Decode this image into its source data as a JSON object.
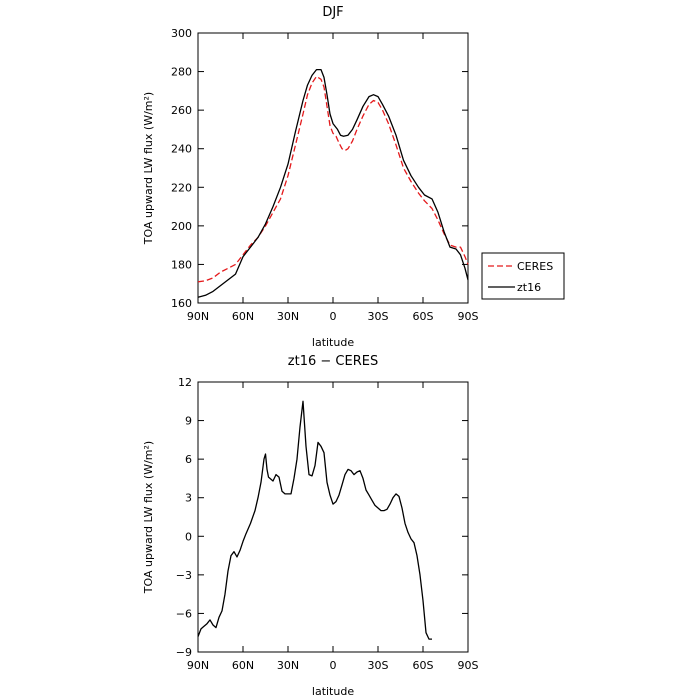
{
  "chart_data": [
    {
      "type": "line",
      "title": "DJF",
      "xlabel": "latitude",
      "ylabel": "TOA upward LW flux (W/m²)",
      "xlim": [
        90,
        -90
      ],
      "ylim": [
        160,
        300
      ],
      "xticks": [
        90,
        60,
        30,
        0,
        -30,
        -60,
        -90
      ],
      "xtick_labels": [
        "90N",
        "60N",
        "30N",
        "0",
        "30S",
        "60S",
        "90S"
      ],
      "yticks": [
        160,
        180,
        200,
        220,
        240,
        260,
        280,
        300
      ],
      "ytick_labels": [
        "160",
        "180",
        "200",
        "220",
        "240",
        "260",
        "280",
        "300"
      ],
      "grid": false,
      "legend_position": "outside-right",
      "series": [
        {
          "name": "CERES",
          "color": "#e41a1c",
          "dash": true,
          "points": [
            [
              90,
              171
            ],
            [
              85,
              171.5
            ],
            [
              80,
              173
            ],
            [
              75,
              176
            ],
            [
              70,
              178
            ],
            [
              65,
              180
            ],
            [
              60,
              185
            ],
            [
              55,
              190
            ],
            [
              50,
              194
            ],
            [
              45,
              200
            ],
            [
              40,
              207
            ],
            [
              35,
              214
            ],
            [
              30,
              226
            ],
            [
              25,
              242
            ],
            [
              20,
              258
            ],
            [
              17,
              268
            ],
            [
              14,
              274
            ],
            [
              11,
              277.5
            ],
            [
              8,
              276
            ],
            [
              6,
              272
            ],
            [
              4,
              262
            ],
            [
              2,
              252
            ],
            [
              0,
              248
            ],
            [
              -2,
              246.5
            ],
            [
              -4,
              243
            ],
            [
              -6,
              240
            ],
            [
              -8,
              239
            ],
            [
              -10,
              240
            ],
            [
              -13,
              244
            ],
            [
              -16,
              250
            ],
            [
              -20,
              257
            ],
            [
              -24,
              263
            ],
            [
              -27,
              265
            ],
            [
              -30,
              264
            ],
            [
              -33,
              260
            ],
            [
              -37,
              253
            ],
            [
              -42,
              242
            ],
            [
              -47,
              230
            ],
            [
              -52,
              223
            ],
            [
              -57,
              217
            ],
            [
              -61,
              213
            ],
            [
              -66,
              209
            ],
            [
              -70,
              203
            ],
            [
              -74,
              196
            ],
            [
              -78,
              190
            ],
            [
              -82,
              189
            ],
            [
              -85,
              189
            ],
            [
              -88,
              184
            ],
            [
              -90,
              180
            ]
          ]
        },
        {
          "name": "zt16",
          "color": "#000000",
          "dash": false,
          "points": [
            [
              90,
              163
            ],
            [
              85,
              164
            ],
            [
              80,
              166
            ],
            [
              75,
              169
            ],
            [
              70,
              172
            ],
            [
              65,
              175
            ],
            [
              60,
              184
            ],
            [
              55,
              189
            ],
            [
              50,
              194
            ],
            [
              45,
              201
            ],
            [
              40,
              210
            ],
            [
              35,
              220
            ],
            [
              30,
              232
            ],
            [
              25,
              249
            ],
            [
              20,
              265
            ],
            [
              17,
              273
            ],
            [
              14,
              278
            ],
            [
              11,
              281
            ],
            [
              8,
              281
            ],
            [
              6,
              277
            ],
            [
              4,
              268
            ],
            [
              2,
              258
            ],
            [
              0,
              253
            ],
            [
              -3,
              250
            ],
            [
              -5,
              247
            ],
            [
              -7,
              246.5
            ],
            [
              -10,
              247
            ],
            [
              -13,
              250
            ],
            [
              -16,
              255
            ],
            [
              -20,
              262
            ],
            [
              -24,
              267
            ],
            [
              -27,
              268
            ],
            [
              -30,
              267
            ],
            [
              -33,
              263
            ],
            [
              -37,
              257
            ],
            [
              -42,
              247
            ],
            [
              -47,
              234
            ],
            [
              -52,
              226
            ],
            [
              -57,
              220
            ],
            [
              -61,
              216
            ],
            [
              -66,
              214
            ],
            [
              -70,
              207
            ],
            [
              -74,
              197
            ],
            [
              -78,
              189
            ],
            [
              -82,
              188
            ],
            [
              -85,
              185
            ],
            [
              -88,
              178
            ],
            [
              -90,
              172
            ]
          ]
        }
      ]
    },
    {
      "type": "line",
      "title": "zt16 − CERES",
      "xlabel": "latitude",
      "ylabel": "TOA upward LW flux (W/m²)",
      "xlim": [
        90,
        -90
      ],
      "ylim": [
        -9,
        12
      ],
      "xticks": [
        90,
        60,
        30,
        0,
        -30,
        -60,
        -90
      ],
      "xtick_labels": [
        "90N",
        "60N",
        "30N",
        "0",
        "30S",
        "60S",
        "90S"
      ],
      "yticks": [
        -9,
        -6,
        -3,
        0,
        3,
        6,
        9,
        12
      ],
      "ytick_labels": [
        "−9",
        "−6",
        "−3",
        "0",
        "3",
        "6",
        "9",
        "12"
      ],
      "grid": false,
      "series": [
        {
          "color": "#000000",
          "dash": false,
          "points": [
            [
              90,
              -7.8
            ],
            [
              88,
              -7.2
            ],
            [
              86,
              -7
            ],
            [
              84,
              -6.8
            ],
            [
              82,
              -6.5
            ],
            [
              80,
              -6.9
            ],
            [
              78,
              -7.1
            ],
            [
              76,
              -6.3
            ],
            [
              74,
              -5.8
            ],
            [
              72,
              -4.5
            ],
            [
              70,
              -2.7
            ],
            [
              68,
              -1.5
            ],
            [
              66,
              -1.2
            ],
            [
              64,
              -1.6
            ],
            [
              62,
              -1.1
            ],
            [
              60,
              -0.4
            ],
            [
              58,
              0.2
            ],
            [
              55,
              1
            ],
            [
              52,
              2
            ],
            [
              50,
              3
            ],
            [
              48,
              4.2
            ],
            [
              46,
              6
            ],
            [
              45,
              6.4
            ],
            [
              44,
              5.2
            ],
            [
              43,
              4.6
            ],
            [
              40,
              4.3
            ],
            [
              38,
              4.8
            ],
            [
              36,
              4.6
            ],
            [
              34,
              3.5
            ],
            [
              32,
              3.3
            ],
            [
              28,
              3.3
            ],
            [
              26,
              4.5
            ],
            [
              24,
              6
            ],
            [
              22,
              8.5
            ],
            [
              20,
              10.5
            ],
            [
              18,
              7
            ],
            [
              16,
              4.8
            ],
            [
              14,
              4.7
            ],
            [
              12,
              5.5
            ],
            [
              10,
              7.3
            ],
            [
              8,
              7
            ],
            [
              6,
              6.5
            ],
            [
              4,
              4.2
            ],
            [
              2,
              3.2
            ],
            [
              0,
              2.5
            ],
            [
              -2,
              2.7
            ],
            [
              -4,
              3.2
            ],
            [
              -6,
              4
            ],
            [
              -8,
              4.8
            ],
            [
              -10,
              5.2
            ],
            [
              -12,
              5.1
            ],
            [
              -14,
              4.8
            ],
            [
              -16,
              5
            ],
            [
              -18,
              5.1
            ],
            [
              -20,
              4.5
            ],
            [
              -22,
              3.6
            ],
            [
              -24,
              3.2
            ],
            [
              -26,
              2.8
            ],
            [
              -28,
              2.4
            ],
            [
              -30,
              2.2
            ],
            [
              -32,
              2
            ],
            [
              -34,
              2
            ],
            [
              -36,
              2.1
            ],
            [
              -38,
              2.5
            ],
            [
              -40,
              3
            ],
            [
              -42,
              3.3
            ],
            [
              -44,
              3.1
            ],
            [
              -46,
              2.2
            ],
            [
              -48,
              1
            ],
            [
              -50,
              0.3
            ],
            [
              -52,
              -0.2
            ],
            [
              -54,
              -0.5
            ],
            [
              -56,
              -1.5
            ],
            [
              -58,
              -3
            ],
            [
              -60,
              -5
            ],
            [
              -62,
              -7.5
            ],
            [
              -64,
              -8
            ],
            [
              -66,
              -8
            ]
          ]
        }
      ]
    }
  ]
}
